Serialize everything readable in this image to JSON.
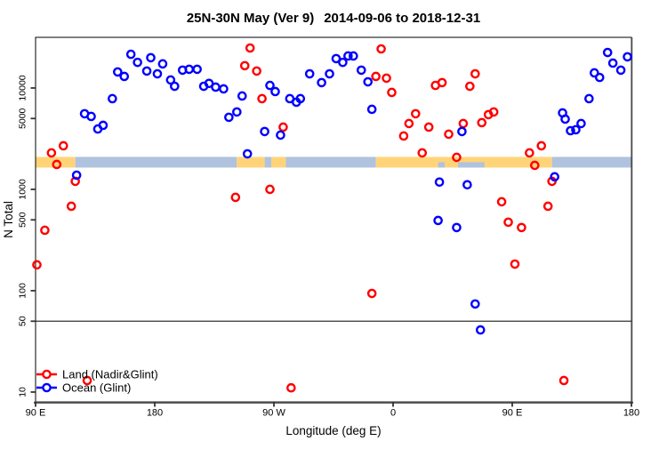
{
  "chart_data": {
    "type": "scatter",
    "title": "25N-30N May (Ver 9)   2014-09-06 to 2018-12-31",
    "title_main": "25N-30N May (Ver 9)",
    "title_range": "2014-09-06 to 2018-12-31",
    "xlabel": "Longitude (deg E)",
    "ylabel": "N Total",
    "x_axis": {
      "min": 90,
      "max": 540,
      "note": "longitude wraps eastward: 90E to 180 to 90W to 0 to 90E to 180",
      "ticks": [
        {
          "pos": 90,
          "label": "90 E"
        },
        {
          "pos": 180,
          "label": "180"
        },
        {
          "pos": 270,
          "label": "90 W"
        },
        {
          "pos": 360,
          "label": "0"
        },
        {
          "pos": 450,
          "label": "90 E"
        },
        {
          "pos": 540,
          "label": "180"
        }
      ]
    },
    "y_axis": {
      "scale": "log",
      "min": 8,
      "max": 31600,
      "ticks": [
        10,
        50,
        100,
        500,
        1000,
        5000,
        10000
      ]
    },
    "reference_line": {
      "y": 50,
      "color": "#333333"
    },
    "coast_band": {
      "value_top": 2090,
      "value_bottom": 1640,
      "land_color": "#FFD479",
      "ocean_color": "#AFC2DE",
      "segments": [
        {
          "from": 90,
          "to": 120,
          "surface": "land"
        },
        {
          "from": 120,
          "to": 242,
          "surface": "ocean"
        },
        {
          "from": 242,
          "to": 263,
          "surface": "land"
        },
        {
          "from": 263,
          "to": 268,
          "surface": "ocean"
        },
        {
          "from": 268,
          "to": 279,
          "surface": "land"
        },
        {
          "from": 279,
          "to": 347,
          "surface": "ocean"
        },
        {
          "from": 347,
          "to": 480,
          "surface": "land"
        },
        {
          "from": 480,
          "to": 540,
          "surface": "ocean"
        }
      ],
      "ocean_inlays": [
        [
          394,
          399
        ],
        [
          409,
          429
        ]
      ]
    },
    "legend_position": "bottom-left",
    "series": [
      {
        "name": "Land (Nadir&Glint)",
        "color": "#FF0000",
        "marker": "open-circle",
        "points": [
          [
            111,
            2690
          ],
          [
            102,
            2290
          ],
          [
            106,
            1760
          ],
          [
            120,
            1200
          ],
          [
            117,
            681
          ],
          [
            97,
            395
          ],
          [
            91,
            180
          ],
          [
            129,
            13
          ],
          [
            241,
            834
          ],
          [
            267,
            1000
          ],
          [
            252,
            24800
          ],
          [
            248,
            16600
          ],
          [
            257,
            14700
          ],
          [
            261,
            7850
          ],
          [
            277,
            4110
          ],
          [
            283,
            11
          ],
          [
            351,
            24300
          ],
          [
            347,
            13000
          ],
          [
            355,
            12500
          ],
          [
            359,
            9040
          ],
          [
            368,
            3360
          ],
          [
            372,
            4460
          ],
          [
            377,
            5570
          ],
          [
            387,
            4110
          ],
          [
            382,
            2290
          ],
          [
            344,
            94
          ],
          [
            392,
            10600
          ],
          [
            397,
            11300
          ],
          [
            422,
            13800
          ],
          [
            418,
            10400
          ],
          [
            432,
            5460
          ],
          [
            427,
            4550
          ],
          [
            436,
            5800
          ],
          [
            413,
            4460
          ],
          [
            402,
            3500
          ],
          [
            408,
            2070
          ],
          [
            463,
            2290
          ],
          [
            472,
            2690
          ],
          [
            467,
            1725
          ],
          [
            480,
            1200
          ],
          [
            442,
            754
          ],
          [
            477,
            681
          ],
          [
            447,
            474
          ],
          [
            457,
            420
          ],
          [
            452,
            183
          ],
          [
            489,
            13
          ]
        ]
      },
      {
        "name": "Ocean (Glint)",
        "color": "#0000FF",
        "marker": "open-circle",
        "points": [
          [
            162,
            21500
          ],
          [
            167,
            17900
          ],
          [
            177,
            19900
          ],
          [
            174,
            14700
          ],
          [
            182,
            13800
          ],
          [
            186,
            17300
          ],
          [
            192,
            12000
          ],
          [
            195,
            10400
          ],
          [
            152,
            14400
          ],
          [
            157,
            13000
          ],
          [
            201,
            15000
          ],
          [
            206,
            15300
          ],
          [
            212,
            15300
          ],
          [
            217,
            10400
          ],
          [
            221,
            11100
          ],
          [
            226,
            10200
          ],
          [
            232,
            9800
          ],
          [
            148,
            7850
          ],
          [
            127,
            5570
          ],
          [
            132,
            5240
          ],
          [
            137,
            3940
          ],
          [
            141,
            4280
          ],
          [
            236,
            5140
          ],
          [
            242,
            5800
          ],
          [
            121,
            1380
          ],
          [
            267,
            10600
          ],
          [
            271,
            9220
          ],
          [
            246,
            8340
          ],
          [
            282,
            7850
          ],
          [
            287,
            7240
          ],
          [
            290,
            7850
          ],
          [
            297,
            13800
          ],
          [
            306,
            11300
          ],
          [
            312,
            13800
          ],
          [
            317,
            19500
          ],
          [
            322,
            17900
          ],
          [
            326,
            20700
          ],
          [
            330,
            20700
          ],
          [
            336,
            15000
          ],
          [
            341,
            11500
          ],
          [
            344,
            6160
          ],
          [
            263,
            3720
          ],
          [
            275,
            3430
          ],
          [
            250,
            2240
          ],
          [
            412,
            3720
          ],
          [
            395,
            1180
          ],
          [
            416,
            1110
          ],
          [
            394,
            493
          ],
          [
            408,
            420
          ],
          [
            422,
            74
          ],
          [
            426,
            41
          ],
          [
            482,
            1330
          ],
          [
            488,
            5680
          ],
          [
            490,
            4930
          ],
          [
            494,
            3790
          ],
          [
            498,
            3870
          ],
          [
            502,
            4460
          ],
          [
            508,
            7850
          ],
          [
            512,
            14100
          ],
          [
            516,
            12700
          ],
          [
            522,
            22400
          ],
          [
            526,
            17600
          ],
          [
            532,
            15000
          ],
          [
            537,
            20300
          ]
        ]
      }
    ]
  }
}
